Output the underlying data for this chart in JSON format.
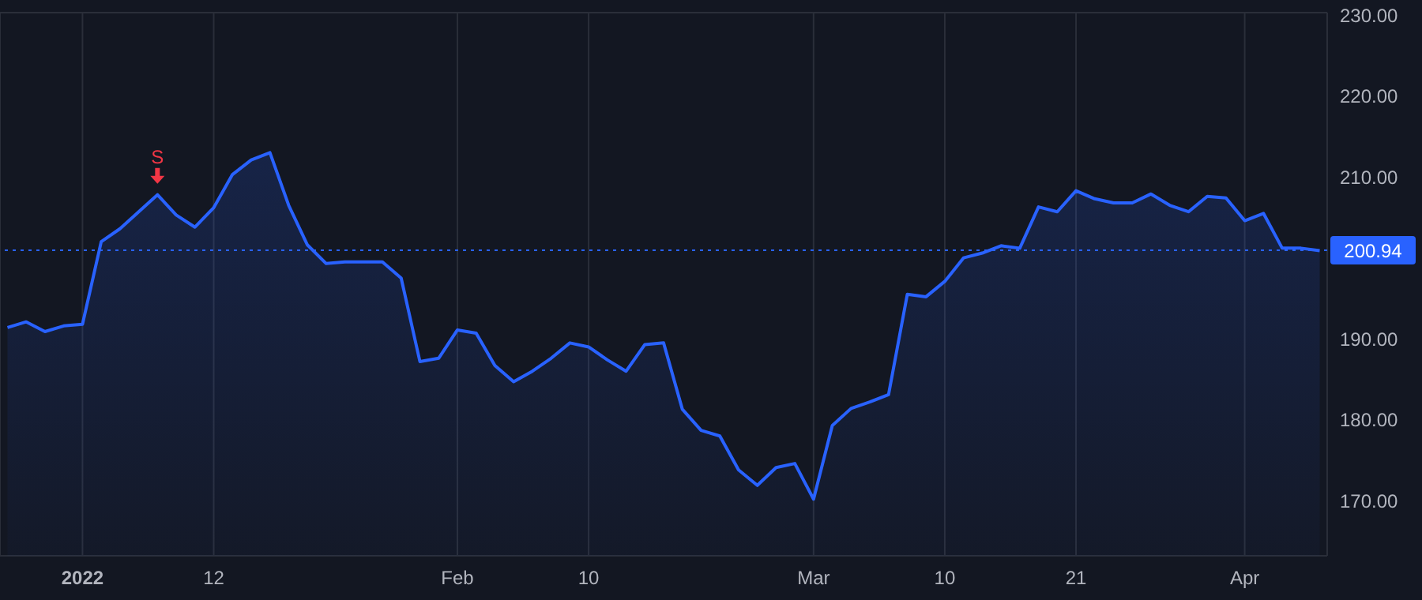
{
  "chart_data": {
    "type": "area",
    "categories": [
      null,
      null,
      null,
      null,
      "2022",
      null,
      null,
      null,
      null,
      null,
      null,
      "12",
      null,
      null,
      null,
      null,
      null,
      null,
      null,
      null,
      null,
      null,
      null,
      null,
      "Feb",
      null,
      null,
      null,
      null,
      null,
      null,
      "10",
      null,
      null,
      null,
      null,
      null,
      null,
      null,
      null,
      null,
      null,
      null,
      "Mar",
      null,
      null,
      null,
      null,
      null,
      null,
      "10",
      null,
      null,
      null,
      null,
      null,
      null,
      "21",
      null,
      null,
      null,
      null,
      null,
      null,
      null,
      null,
      "Apr",
      null,
      null,
      null,
      null
    ],
    "series": [
      {
        "color": "#2962ff",
        "values": [
          191.4,
          192.1,
          190.9,
          191.6,
          191.8,
          202.0,
          203.6,
          205.7,
          207.8,
          205.3,
          203.8,
          206.2,
          210.3,
          212.1,
          213.0,
          206.5,
          201.6,
          199.3,
          199.5,
          199.5,
          199.5,
          197.5,
          187.2,
          187.6,
          191.1,
          190.7,
          186.7,
          184.7,
          186.0,
          187.6,
          189.5,
          189.0,
          187.4,
          186.0,
          189.3,
          189.5,
          181.3,
          178.7,
          178.0,
          173.8,
          171.9,
          174.1,
          174.6,
          170.2,
          179.3,
          181.4,
          182.2,
          183.1,
          195.5,
          195.2,
          197.1,
          200.0,
          200.6,
          201.5,
          201.2,
          206.3,
          205.7,
          208.3,
          207.3,
          206.8,
          206.8,
          207.9,
          206.5,
          205.7,
          207.6,
          207.4,
          204.6,
          205.5,
          201.2,
          201.2,
          200.9
        ]
      }
    ],
    "ylim": [
      163.2,
      230.3
    ],
    "yticks": [
      {
        "value": 170,
        "label": "170.00"
      },
      {
        "value": 180,
        "label": "180.00"
      },
      {
        "value": 190,
        "label": "190.00"
      },
      {
        "value": 210,
        "label": "210.00"
      },
      {
        "value": 220,
        "label": "220.00"
      },
      {
        "value": 230,
        "label": "230.00"
      }
    ],
    "grid": true,
    "ref_lines": [
      {
        "axis": "y",
        "value": 200.94,
        "label": "200.94",
        "color": "#2962ff",
        "line_style": "dotted"
      }
    ],
    "annotations": [
      {
        "text": "S",
        "y": 207.8
      }
    ]
  }
}
